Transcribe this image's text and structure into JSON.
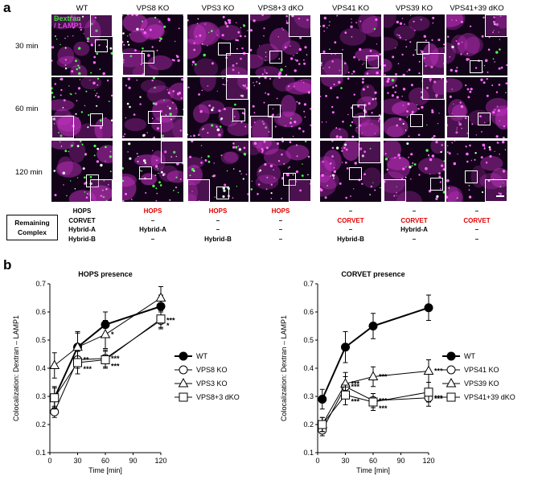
{
  "panel_a": {
    "letter": "a",
    "columns": [
      "WT",
      "VPS8 KO",
      "VPS3 KO",
      "VPS8+3 dKO",
      "VPS41 KO",
      "VPS39 KO",
      "VPS41+39 dKO"
    ],
    "rows": [
      "30 min",
      "60 min",
      "120 min"
    ],
    "stain_legend": {
      "dextran": "Dextran",
      "lamp1": "/ LAMP1"
    },
    "colors": {
      "dextran": "#3ddc3d",
      "lamp1": "#e040e0",
      "background": "#120318"
    },
    "remaining_complex_label": "Remaining\nComplex",
    "table_row_labels": [
      "HOPS",
      "CORVET",
      "Hybrid-A",
      "Hybrid-B"
    ],
    "table_cells": [
      [
        "",
        "",
        "",
        ""
      ],
      [
        "HOPS",
        "–",
        "Hybrid-A",
        "–"
      ],
      [
        "HOPS",
        "–",
        "–",
        "Hybrid-B"
      ],
      [
        "HOPS",
        "–",
        "–",
        "–"
      ],
      [
        "–",
        "CORVET",
        "–",
        "Hybrid-B"
      ],
      [
        "–",
        "CORVET",
        "Hybrid-A",
        "–"
      ],
      [
        "–",
        "CORVET",
        "–",
        "–"
      ]
    ],
    "highlight_color": "#e00000"
  },
  "panel_b": {
    "letter": "b"
  },
  "chart_data": [
    {
      "type": "line",
      "title": "HOPS presence",
      "xlabel": "Time [min]",
      "ylabel": "Colocalization: Dextran – LAMP1",
      "x": [
        5,
        30,
        60,
        120
      ],
      "xlim": [
        0,
        120
      ],
      "ylim": [
        0.1,
        0.7
      ],
      "xticks": [
        0,
        30,
        60,
        90,
        120
      ],
      "yticks": [
        0.1,
        0.2,
        0.3,
        0.4,
        0.5,
        0.6,
        0.7
      ],
      "series": [
        {
          "name": "WT",
          "marker": "circle-filled",
          "values": [
            0.295,
            0.475,
            0.555,
            0.62
          ],
          "err": [
            0.035,
            0.05,
            0.045,
            0.04
          ],
          "sig": [
            "",
            "",
            "",
            ""
          ]
        },
        {
          "name": "VPS8 KO",
          "marker": "circle-open",
          "values": [
            0.245,
            0.43,
            0.435,
            0.57
          ],
          "err": [
            0.02,
            0.03,
            0.03,
            0.03
          ],
          "sig": [
            "",
            "**",
            "***",
            "***"
          ]
        },
        {
          "name": "VPS3 KO",
          "marker": "triangle-open",
          "values": [
            0.41,
            0.475,
            0.52,
            0.65
          ],
          "err": [
            0.045,
            0.055,
            0.05,
            0.04
          ],
          "sig": [
            "",
            "",
            "*",
            ""
          ]
        },
        {
          "name": "VPS8+3 dKO",
          "marker": "square-open",
          "values": [
            0.295,
            0.42,
            0.43,
            0.575
          ],
          "err": [
            0.04,
            0.04,
            0.03,
            0.03
          ],
          "sig": [
            "",
            "***",
            "***",
            "*"
          ]
        }
      ],
      "legend": "bottom-right"
    },
    {
      "type": "line",
      "title": "CORVET presence",
      "xlabel": "Time [min]",
      "ylabel": "Colocalization: Dextran – LAMP1",
      "x": [
        5,
        30,
        60,
        120
      ],
      "xlim": [
        0,
        120
      ],
      "ylim": [
        0.1,
        0.7
      ],
      "xticks": [
        0,
        30,
        60,
        90,
        120
      ],
      "yticks": [
        0.1,
        0.2,
        0.3,
        0.4,
        0.5,
        0.6,
        0.7
      ],
      "series": [
        {
          "name": "WT",
          "marker": "circle-filled",
          "values": [
            0.29,
            0.475,
            0.55,
            0.615
          ],
          "err": [
            0.035,
            0.055,
            0.045,
            0.045
          ],
          "sig": [
            "",
            "",
            "",
            ""
          ]
        },
        {
          "name": "VPS41 KO",
          "marker": "circle-open",
          "values": [
            0.18,
            0.335,
            0.285,
            0.295
          ],
          "err": [
            0.02,
            0.035,
            0.025,
            0.03
          ],
          "sig": [
            "",
            "***",
            "***",
            "***"
          ]
        },
        {
          "name": "VPS39 KO",
          "marker": "triangle-open",
          "values": [
            0.2,
            0.345,
            0.37,
            0.39
          ],
          "err": [
            0.025,
            0.04,
            0.035,
            0.04
          ],
          "sig": [
            "",
            "***",
            "***",
            "***"
          ]
        },
        {
          "name": "VPS41+39 dKO",
          "marker": "square-open",
          "values": [
            0.2,
            0.305,
            0.28,
            0.315
          ],
          "err": [
            0.025,
            0.035,
            0.03,
            0.035
          ],
          "sig": [
            "",
            "***",
            "***",
            "***"
          ]
        }
      ],
      "legend": "bottom-right"
    }
  ]
}
